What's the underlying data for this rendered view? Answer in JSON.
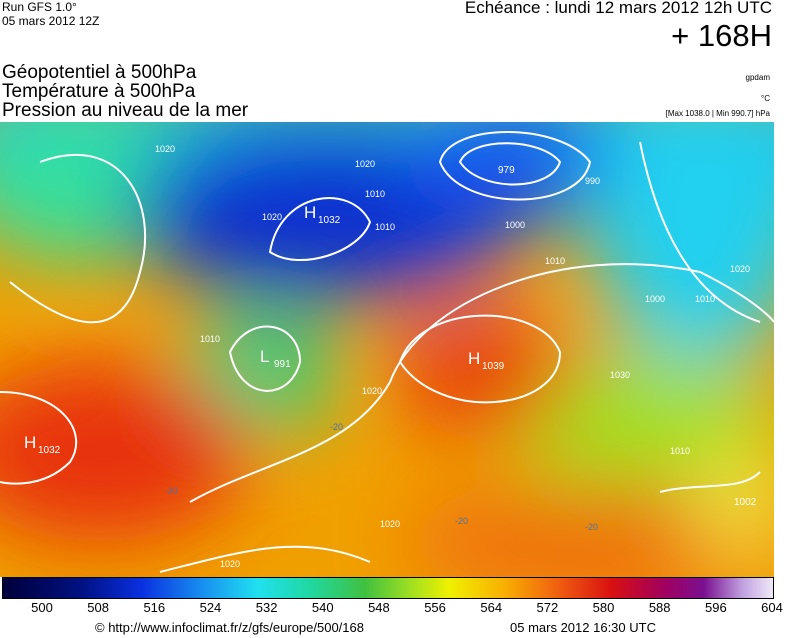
{
  "header": {
    "run": "Run GFS 1.0°",
    "run_date": "05 mars 2012 12Z",
    "echeance": "Echéance : lundi 12 mars 2012 12h UTC",
    "lead": "+ 168H",
    "fields": [
      "Géopotentiel à 500hPa",
      "Température à 500hPa",
      "Pression au niveau de la mer"
    ],
    "units": [
      "gpdam",
      "°C",
      "[Max 1038.0 | Min 990.7] hPa"
    ]
  },
  "map": {
    "centers": [
      {
        "letter": "H",
        "value": "1032"
      },
      {
        "letter": "H",
        "value": "1032"
      },
      {
        "letter": "L",
        "value": "991"
      },
      {
        "letter": "H",
        "value": "1039"
      },
      {
        "letter": "",
        "value": "979"
      },
      {
        "letter": "",
        "value": "1002"
      }
    ],
    "isobar_labels": [
      "1020",
      "1010",
      "1020",
      "1010",
      "1000",
      "990",
      "1010",
      "1020",
      "1000",
      "1010",
      "1030",
      "1010",
      "1020",
      "1010",
      "1020",
      "1020",
      "1020"
    ],
    "temperature_labels": [
      "-20",
      "-20",
      "-20",
      "-20"
    ]
  },
  "colorbar": {
    "ticks": [
      "500",
      "508",
      "516",
      "524",
      "532",
      "540",
      "548",
      "556",
      "564",
      "572",
      "580",
      "588",
      "596",
      "604"
    ]
  },
  "footer": {
    "source": "© http://www.infoclimat.fr/z/gfs/europe/500/168",
    "generated": "05 mars 2012 16:30 UTC"
  }
}
